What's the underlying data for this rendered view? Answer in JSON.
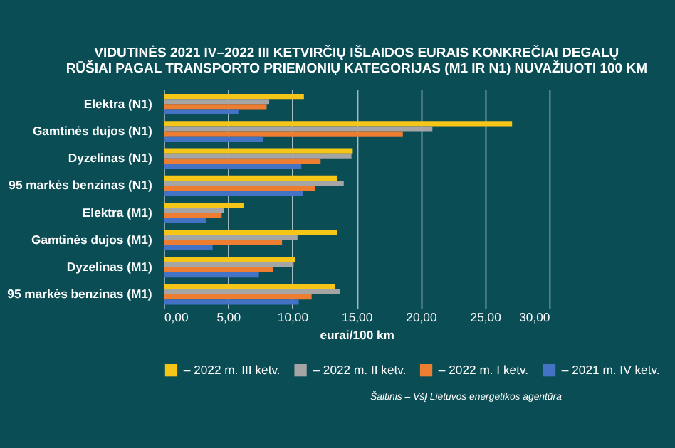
{
  "chart_data": {
    "type": "bar",
    "orientation": "horizontal",
    "title": "VIDUTINĖS 2021 IV–2022 III KETVIRČIŲ IŠLAIDOS EURAIS KONKREČIAI DEGALŲ RŪŠIAI PAGAL TRANSPORTO PRIEMONIŲ KATEGORIJAS (M1 IR N1) NUVAŽIUOTI 100 KM",
    "xlabel": "eurai/100 km",
    "categories": [
      "Elektra (N1)",
      "Gamtinės dujos (N1)",
      "Dyzelinas (N1)",
      "95 markės benzinas (N1)",
      "Elektra (M1)",
      "Gamtinės dujos (M1)",
      "Dyzelinas (M1)",
      "95 markės benzinas (M1)"
    ],
    "series": [
      {
        "name": "– 2022 m. III ketv.",
        "color": "#f5c518",
        "values": [
          10.9,
          27.1,
          14.7,
          13.5,
          6.2,
          13.5,
          10.2,
          13.3
        ]
      },
      {
        "name": "– 2022 m. II ketv.",
        "color": "#a5a5a5",
        "values": [
          8.2,
          20.9,
          14.6,
          14.0,
          4.7,
          10.4,
          10.1,
          13.7
        ]
      },
      {
        "name": "– 2022 m. I ketv.",
        "color": "#ed7d31",
        "values": [
          8.0,
          18.6,
          12.2,
          11.8,
          4.5,
          9.2,
          8.5,
          11.5
        ]
      },
      {
        "name": "– 2021 m. IV ketv.",
        "color": "#4472c4",
        "values": [
          5.8,
          7.7,
          10.7,
          10.8,
          3.3,
          3.8,
          7.4,
          10.5
        ]
      }
    ],
    "xlim": [
      0,
      30
    ],
    "xticks": [
      {
        "value": 0,
        "label": "0,00"
      },
      {
        "value": 5,
        "label": "5,00"
      },
      {
        "value": 10,
        "label": "10,00"
      },
      {
        "value": 15,
        "label": "15,00"
      },
      {
        "value": 20,
        "label": "20,00"
      },
      {
        "value": 25,
        "label": "25,00"
      },
      {
        "value": 30,
        "label": "30,00"
      }
    ],
    "grid": "x",
    "legend": "bottom",
    "annotations": [
      "Šaltinis – VšĮ Lietuvos energetikos agentūra"
    ]
  }
}
